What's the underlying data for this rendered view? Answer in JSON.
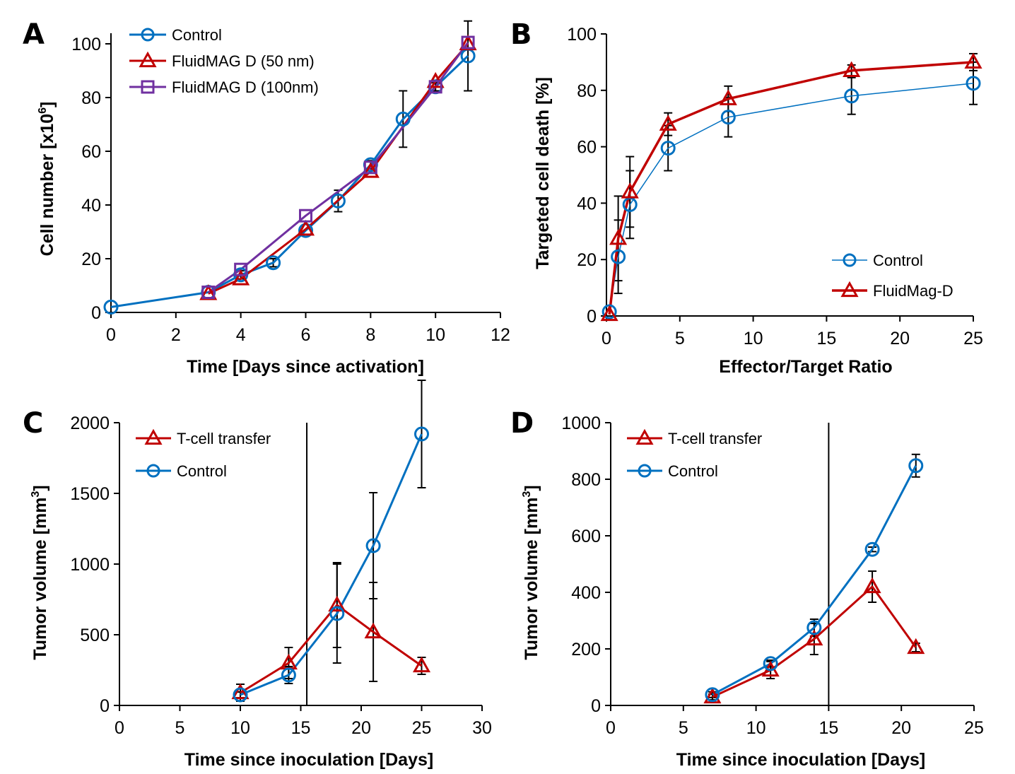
{
  "figure": {
    "colors": {
      "control": "#0070c0",
      "fluidmag50": "#c00000",
      "fluidmag100": "#7030a0",
      "tcell": "#c00000",
      "errorbar": "#000000",
      "axis": "#000000"
    }
  },
  "chart_data": [
    {
      "id": "A",
      "panel_label": "A",
      "type": "line",
      "title": "",
      "xlabel": "Time [Days since activation]",
      "ylabel": "Cell number [x10^6]",
      "ylabel_parts": {
        "main": "Cell number [x10",
        "sup": "6",
        "end": "]"
      },
      "xlim": [
        0,
        12
      ],
      "ylim": [
        0,
        100
      ],
      "xticks": [
        0,
        2,
        4,
        6,
        8,
        10,
        12
      ],
      "yticks": [
        0,
        20,
        40,
        60,
        80,
        100
      ],
      "legend_position": "top-left",
      "grid": false,
      "series": [
        {
          "name": "Control",
          "color_key": "control",
          "marker": "circle",
          "line_width": 3,
          "x": [
            0,
            3,
            4,
            5,
            6,
            7,
            8,
            9,
            10,
            11
          ],
          "y": [
            2,
            7.5,
            14,
            18.5,
            30.5,
            41.5,
            55,
            72,
            84,
            95.5
          ],
          "err": [
            0,
            0,
            1.5,
            1.5,
            0,
            4,
            1.5,
            10.5,
            1.5,
            13
          ]
        },
        {
          "name": "FluidMAG D (50 nm)",
          "color_key": "fluidmag50",
          "marker": "triangle",
          "line_width": 3,
          "x": [
            3,
            4,
            6,
            8,
            10,
            11
          ],
          "y": [
            7,
            12.5,
            31,
            52.5,
            86,
            100
          ],
          "err": [
            0,
            0,
            0,
            0,
            0,
            0
          ]
        },
        {
          "name": "FluidMAG D (100nm)",
          "color_key": "fluidmag100",
          "marker": "square",
          "line_width": 3,
          "x": [
            3,
            4,
            6,
            8,
            10,
            11
          ],
          "y": [
            7.5,
            16,
            36,
            54,
            84,
            100.5
          ],
          "err": [
            0,
            0,
            0,
            0,
            0,
            0
          ]
        }
      ]
    },
    {
      "id": "B",
      "panel_label": "B",
      "type": "line",
      "title": "",
      "xlabel": "Effector/Target Ratio",
      "ylabel": "Targeted cell death [%]",
      "xlim": [
        0,
        25
      ],
      "ylim": [
        0,
        100
      ],
      "xticks": [
        0,
        5,
        10,
        15,
        20,
        25
      ],
      "yticks": [
        0,
        20,
        40,
        60,
        80,
        100
      ],
      "legend_position": "bottom-right",
      "grid": false,
      "series": [
        {
          "name": "Control",
          "color_key": "control",
          "marker": "circle",
          "line_width": 1.5,
          "x": [
            0.2,
            0.8,
            1.6,
            4.2,
            8.3,
            16.7,
            25
          ],
          "y": [
            1.5,
            21,
            39.5,
            59.5,
            70.5,
            78,
            82.5
          ],
          "err": [
            0,
            13,
            12,
            8,
            7,
            6.5,
            7.5
          ]
        },
        {
          "name": "FluidMag-D",
          "color_key": "fluidmag50",
          "marker": "triangle",
          "line_width": 3.5,
          "x": [
            0.2,
            0.8,
            1.6,
            4.2,
            8.3,
            16.7,
            25
          ],
          "y": [
            0.5,
            27.5,
            44,
            68,
            77,
            87,
            90
          ],
          "err": [
            0,
            15,
            12.5,
            4,
            4.5,
            2,
            3
          ]
        }
      ]
    },
    {
      "id": "C",
      "panel_label": "C",
      "type": "line",
      "title": "",
      "xlabel": "Time since inoculation [Days]",
      "ylabel": "Tumor volume [mm^3]",
      "ylabel_parts": {
        "main": "Tumor volume [mm",
        "sup": "3",
        "end": "]"
      },
      "xlim": [
        0,
        30
      ],
      "ylim": [
        0,
        2000
      ],
      "xticks": [
        0,
        5,
        10,
        15,
        20,
        25,
        30
      ],
      "yticks": [
        0,
        500,
        1000,
        1500,
        2000
      ],
      "vertical_line_x": 15.5,
      "legend_position": "top-left",
      "grid": false,
      "series": [
        {
          "name": "T-cell transfer",
          "color_key": "tcell",
          "marker": "triangle",
          "line_width": 3,
          "x": [
            10,
            14,
            18,
            21,
            25
          ],
          "y": [
            90,
            300,
            710,
            520,
            280
          ],
          "err": [
            60,
            110,
            300,
            350,
            60
          ]
        },
        {
          "name": "Control",
          "color_key": "control",
          "marker": "circle",
          "line_width": 3,
          "x": [
            10,
            14,
            18,
            21,
            25
          ],
          "y": [
            75,
            215,
            650,
            1130,
            1920
          ],
          "err": [
            20,
            60,
            350,
            375,
            380
          ]
        }
      ]
    },
    {
      "id": "D",
      "panel_label": "D",
      "type": "line",
      "title": "",
      "xlabel": "Time since inoculation [Days]",
      "ylabel": "Tumor volume [mm^3]",
      "ylabel_parts": {
        "main": "Tumor volume [mm",
        "sup": "3",
        "end": "]"
      },
      "xlim": [
        0,
        25
      ],
      "ylim": [
        0,
        1000
      ],
      "xticks": [
        0,
        5,
        10,
        15,
        20,
        25
      ],
      "yticks": [
        0,
        200,
        400,
        600,
        800,
        1000
      ],
      "vertical_line_x": 15,
      "legend_position": "top-left",
      "grid": false,
      "series": [
        {
          "name": "T-cell transfer",
          "color_key": "tcell",
          "marker": "triangle",
          "line_width": 3,
          "x": [
            7,
            11,
            14,
            18,
            21
          ],
          "y": [
            30,
            125,
            235,
            420,
            205
          ],
          "err": [
            10,
            30,
            55,
            55,
            15
          ]
        },
        {
          "name": "Control",
          "color_key": "control",
          "marker": "circle",
          "line_width": 3,
          "x": [
            7,
            11,
            14,
            18,
            21
          ],
          "y": [
            38,
            148,
            275,
            552,
            848
          ],
          "err": [
            10,
            12,
            30,
            8,
            40
          ]
        }
      ]
    }
  ]
}
